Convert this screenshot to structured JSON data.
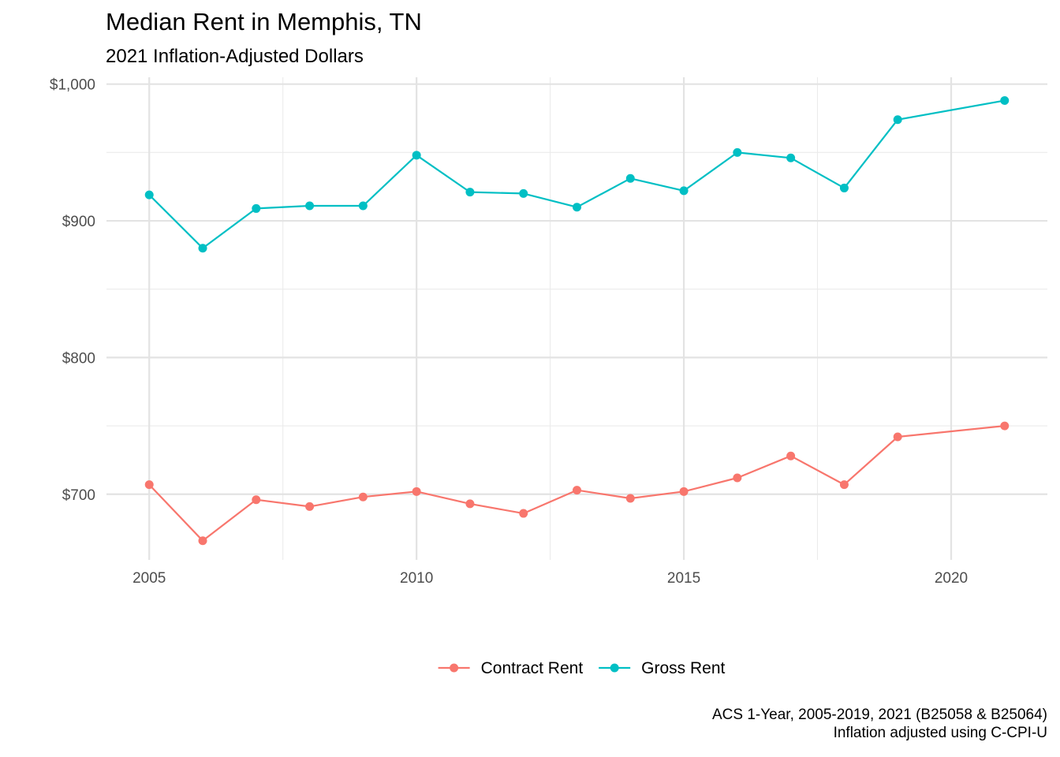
{
  "chart_data": {
    "type": "line",
    "title": "Median Rent in Memphis, TN",
    "subtitle": "2021 Inflation-Adjusted Dollars",
    "xlabel": "",
    "ylabel": "",
    "x": [
      2005,
      2006,
      2007,
      2008,
      2009,
      2010,
      2011,
      2012,
      2013,
      2014,
      2015,
      2016,
      2017,
      2018,
      2019,
      2021
    ],
    "x_ticks": [
      2005,
      2010,
      2015,
      2020
    ],
    "x_tick_labels": [
      "2005",
      "2010",
      "2015",
      "2020"
    ],
    "xlim": [
      2004.2,
      2021.8
    ],
    "y_ticks": [
      700,
      800,
      900,
      1000
    ],
    "y_tick_labels": [
      "$700",
      "$800",
      "$900",
      "$1,000"
    ],
    "ylim": [
      652,
      1005
    ],
    "grid": true,
    "legend_position": "bottom",
    "series": [
      {
        "name": "Contract Rent",
        "color": "#F8766D",
        "values": [
          707,
          666,
          696,
          691,
          698,
          702,
          693,
          686,
          703,
          697,
          702,
          712,
          728,
          707,
          742,
          750
        ]
      },
      {
        "name": "Gross Rent",
        "color": "#00BFC4",
        "values": [
          919,
          880,
          909,
          911,
          911,
          948,
          921,
          920,
          910,
          931,
          922,
          950,
          946,
          924,
          974,
          988
        ]
      }
    ],
    "caption": [
      "ACS 1-Year, 2005-2019, 2021 (B25058 & B25064)",
      "Inflation adjusted using C-CPI-U"
    ]
  }
}
